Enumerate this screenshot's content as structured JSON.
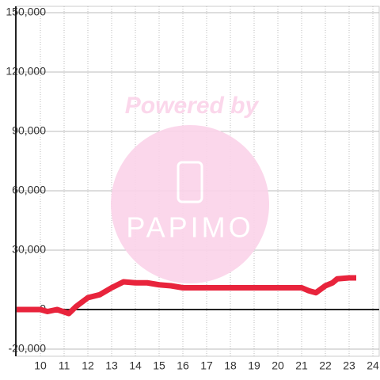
{
  "chart_data": {
    "type": "line",
    "x": [
      9,
      9.5,
      10,
      10.3,
      10.7,
      11.2,
      11.5,
      12,
      12.5,
      13,
      13.5,
      14,
      14.5,
      15,
      15.5,
      16,
      16.5,
      17,
      18,
      19,
      20,
      21,
      21.3,
      21.6,
      22,
      22.3,
      22.5,
      23,
      23.3
    ],
    "values": [
      0,
      0,
      0,
      -1000,
      0,
      -2000,
      1500,
      6000,
      7500,
      11000,
      14000,
      13500,
      13500,
      12500,
      12000,
      11000,
      11000,
      11000,
      11000,
      11000,
      11000,
      11000,
      9500,
      8500,
      12000,
      13500,
      15500,
      16000,
      16000
    ],
    "color": "#e8243c",
    "xlim": [
      9,
      24.3
    ],
    "xticks": [
      10,
      11,
      12,
      13,
      14,
      15,
      16,
      17,
      18,
      19,
      20,
      21,
      22,
      23,
      24
    ],
    "ylim": [
      -20000,
      150000
    ],
    "yticks": [
      {
        "value": -20000,
        "label": "-20,000"
      },
      0,
      {
        "value": 30000,
        "label": "30,000"
      },
      {
        "value": 60000,
        "label": "60,000"
      },
      {
        "value": 90000,
        "label": "90,000"
      },
      {
        "value": 120000,
        "label": "120,000"
      },
      {
        "value": 150000,
        "label": "150,000"
      }
    ],
    "grid": true
  },
  "watermark": {
    "line1": "Powered by",
    "line2": "PAPIMO"
  }
}
